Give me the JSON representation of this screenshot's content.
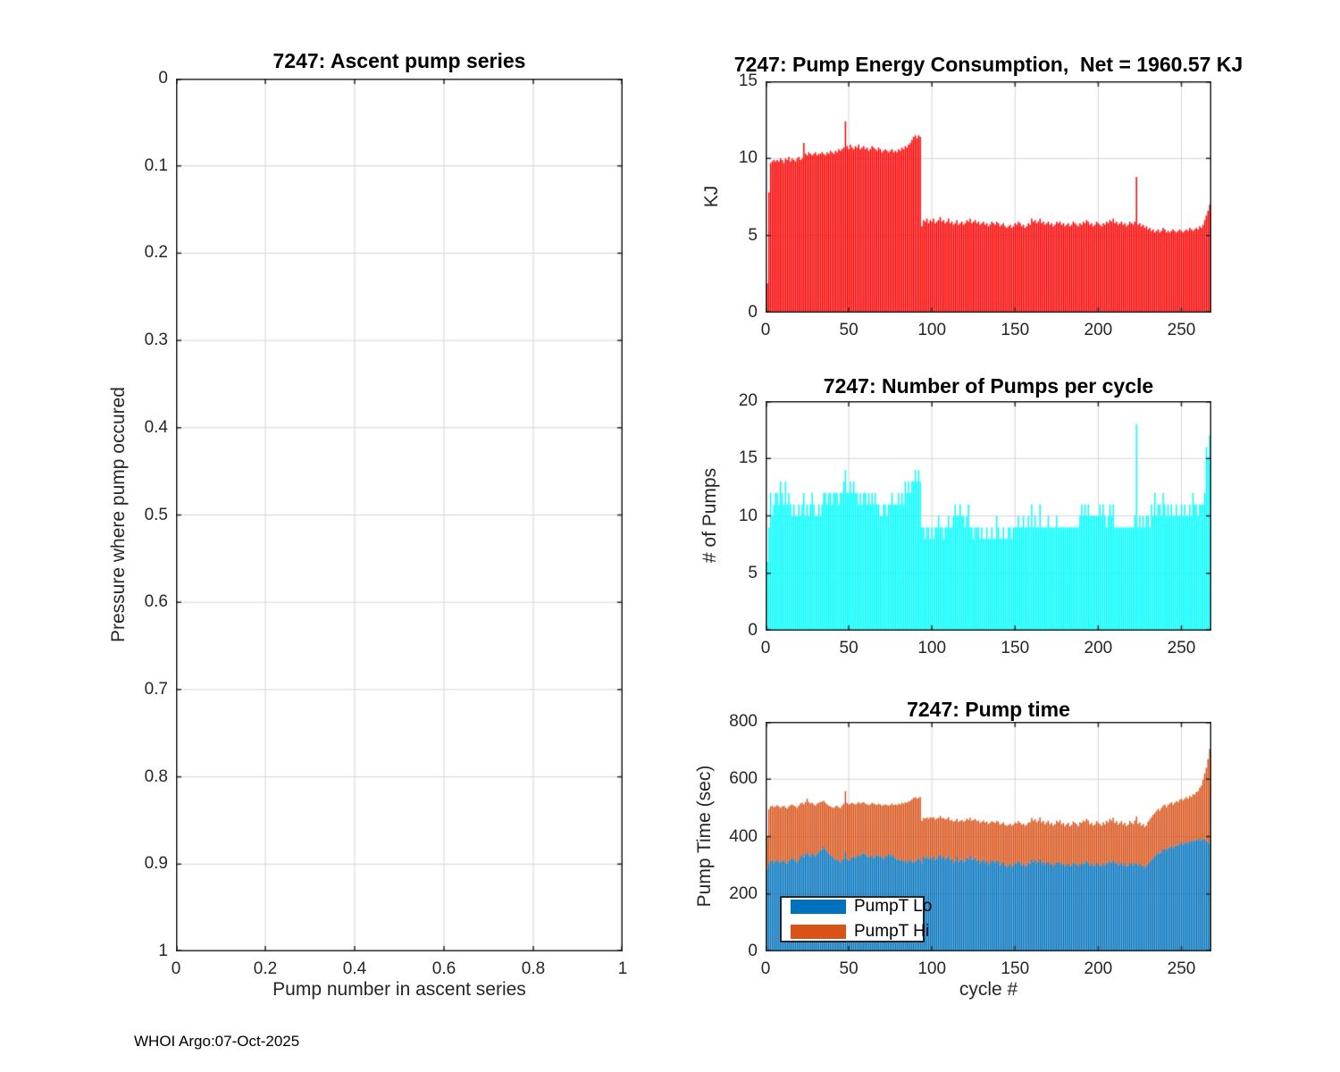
{
  "figure": {
    "footer": "WHOI Argo:07-Oct-2025"
  },
  "colors": {
    "background": "#ffffff",
    "axis": "#262626",
    "grid": "#d6d6d6",
    "energy_bar": "#ff0000",
    "pumps_bar": "#00ffff",
    "pump_lo": "#0072bd",
    "pump_hi": "#d95319"
  },
  "chart_data": [
    {
      "id": "ascent",
      "type": "bar",
      "title": "7247: Ascent pump series",
      "xlabel": "Pump number in ascent series",
      "ylabel": "Pressure where pump occured",
      "xlim": [
        0,
        1
      ],
      "ylim": [
        0,
        1
      ],
      "y_reversed": true,
      "grid": true,
      "xticks": [
        0,
        0.2,
        0.4,
        0.6,
        0.8,
        1
      ],
      "xtick_labels": [
        "0",
        "0.2",
        "0.4",
        "0.6",
        "0.8",
        "1"
      ],
      "yticks": [
        0,
        0.1,
        0.2,
        0.3,
        0.4,
        0.5,
        0.6,
        0.7,
        0.8,
        0.9,
        1
      ],
      "ytick_labels": [
        "0",
        "0.1",
        "0.2",
        "0.3",
        "0.4",
        "0.5",
        "0.6",
        "0.7",
        "0.8",
        "0.9",
        "1"
      ],
      "values": []
    },
    {
      "id": "energy",
      "type": "bar",
      "title": "7247: Pump Energy Consumption,  Net = 1960.57 KJ",
      "xlabel": "",
      "ylabel": "KJ",
      "net_kj": 1960.57,
      "xlim": [
        0,
        268
      ],
      "ylim": [
        0,
        15
      ],
      "grid": true,
      "xticks": [
        0,
        50,
        100,
        150,
        200,
        250
      ],
      "xtick_labels": [
        "0",
        "50",
        "100",
        "150",
        "200",
        "250"
      ],
      "yticks": [
        0,
        5,
        10,
        15
      ],
      "ytick_labels": [
        "0",
        "5",
        "10",
        "15"
      ],
      "bar_color": "#ff0000",
      "values": [
        1.9,
        7.8,
        9.7,
        9.8,
        9.9,
        9.8,
        9.9,
        9.8,
        10.0,
        9.9,
        9.7,
        10.0,
        9.9,
        10.1,
        9.8,
        10.0,
        9.9,
        9.8,
        10.0,
        10.1,
        9.9,
        10.0,
        11.0,
        10.3,
        10.2,
        10.4,
        10.3,
        10.2,
        10.3,
        10.4,
        10.2,
        10.3,
        10.3,
        10.4,
        10.3,
        10.2,
        10.4,
        10.3,
        10.5,
        10.4,
        10.3,
        10.5,
        10.4,
        10.6,
        10.5,
        10.6,
        10.7,
        12.4,
        10.8,
        10.6,
        10.9,
        10.7,
        10.6,
        10.8,
        10.7,
        10.9,
        10.6,
        10.7,
        10.8,
        10.6,
        10.7,
        10.5,
        10.6,
        10.8,
        10.7,
        10.6,
        10.5,
        10.7,
        10.6,
        10.4,
        10.5,
        10.6,
        10.5,
        10.4,
        10.5,
        10.6,
        10.4,
        10.5,
        10.4,
        10.6,
        10.5,
        10.7,
        10.6,
        10.8,
        10.7,
        10.9,
        11.0,
        11.2,
        11.4,
        11.5,
        11.3,
        11.5,
        11.4,
        5.6,
        6.0,
        5.9,
        6.1,
        5.8,
        6.0,
        5.9,
        6.1,
        5.8,
        5.9,
        6.0,
        6.2,
        5.9,
        6.0,
        5.8,
        5.9,
        6.1,
        5.8,
        5.9,
        5.7,
        5.8,
        6.0,
        5.7,
        5.8,
        5.9,
        5.7,
        5.8,
        6.0,
        5.9,
        6.1,
        5.8,
        5.9,
        6.0,
        5.8,
        5.9,
        5.7,
        5.8,
        5.9,
        5.7,
        5.8,
        5.6,
        5.7,
        5.9,
        5.8,
        5.7,
        5.9,
        5.8,
        5.6,
        5.7,
        5.8,
        5.6,
        5.5,
        5.6,
        5.7,
        5.5,
        5.6,
        5.8,
        5.7,
        5.9,
        5.8,
        5.6,
        5.7,
        5.5,
        5.6,
        5.8,
        5.7,
        6.1,
        5.9,
        6.0,
        5.8,
        5.9,
        6.1,
        5.8,
        5.9,
        5.7,
        5.8,
        5.9,
        5.7,
        5.8,
        5.6,
        5.7,
        5.9,
        5.8,
        5.9,
        5.7,
        5.8,
        5.6,
        5.7,
        5.8,
        5.6,
        5.7,
        5.9,
        5.8,
        5.7,
        5.6,
        5.8,
        5.7,
        5.9,
        5.8,
        6.0,
        5.9,
        5.7,
        5.8,
        5.6,
        5.7,
        5.9,
        5.8,
        5.7,
        5.6,
        5.8,
        5.7,
        5.9,
        5.8,
        6.0,
        5.9,
        6.1,
        5.8,
        5.9,
        5.7,
        5.8,
        5.9,
        5.7,
        5.8,
        5.6,
        5.7,
        5.9,
        5.8,
        5.7,
        5.9,
        8.8,
        5.7,
        5.8,
        5.6,
        5.7,
        5.5,
        5.6,
        5.4,
        5.5,
        5.3,
        5.4,
        5.2,
        5.3,
        5.4,
        5.2,
        5.3,
        5.5,
        5.4,
        5.2,
        5.3,
        5.2,
        5.3,
        5.4,
        5.3,
        5.2,
        5.3,
        5.4,
        5.3,
        5.2,
        5.3,
        5.4,
        5.3,
        5.5,
        5.4,
        5.3,
        5.4,
        5.5,
        5.4,
        5.6,
        5.5,
        5.7,
        6.0,
        6.3,
        6.6,
        7.0,
        7.7
      ]
    },
    {
      "id": "pumps",
      "type": "bar",
      "title": "7247: Number of Pumps per cycle",
      "xlabel": "",
      "ylabel": "# of Pumps",
      "xlim": [
        0,
        268
      ],
      "ylim": [
        0,
        20
      ],
      "grid": true,
      "xticks": [
        0,
        50,
        100,
        150,
        200,
        250
      ],
      "xtick_labels": [
        "0",
        "50",
        "100",
        "150",
        "200",
        "250"
      ],
      "yticks": [
        0,
        5,
        10,
        15,
        20
      ],
      "ytick_labels": [
        "0",
        "5",
        "10",
        "15",
        "20"
      ],
      "bar_color": "#00ffff",
      "values": [
        6,
        9,
        12,
        10,
        11,
        12,
        12,
        11,
        13,
        12,
        11,
        13,
        11,
        12,
        11,
        10,
        11,
        10,
        10,
        11,
        10,
        11,
        12,
        10,
        11,
        10,
        11,
        12,
        11,
        10,
        10,
        11,
        10,
        11,
        12,
        12,
        11,
        12,
        12,
        11,
        12,
        12,
        12,
        11,
        12,
        12,
        13,
        14,
        12,
        12,
        13,
        12,
        13,
        12,
        12,
        11,
        12,
        11,
        12,
        12,
        11,
        12,
        11,
        12,
        11,
        12,
        11,
        11,
        10,
        10,
        11,
        11,
        10,
        11,
        11,
        12,
        11,
        11,
        11,
        12,
        11,
        12,
        11,
        13,
        12,
        13,
        12,
        13,
        13,
        14,
        13,
        14,
        13,
        9,
        9,
        8,
        9,
        9,
        8,
        9,
        8,
        9,
        9,
        10,
        9,
        9,
        8,
        9,
        9,
        10,
        9,
        9,
        10,
        11,
        10,
        10,
        11,
        10,
        10,
        9,
        10,
        11,
        9,
        9,
        8,
        9,
        9,
        9,
        8,
        9,
        8,
        8,
        9,
        8,
        8,
        9,
        8,
        8,
        10,
        9,
        8,
        8,
        9,
        8,
        8,
        9,
        9,
        8,
        9,
        9,
        9,
        10,
        9,
        9,
        10,
        9,
        9,
        10,
        9,
        11,
        9,
        10,
        9,
        9,
        11,
        9,
        9,
        9,
        9,
        10,
        9,
        9,
        9,
        9,
        10,
        9,
        9,
        9,
        9,
        9,
        9,
        9,
        9,
        9,
        9,
        9,
        9,
        9,
        10,
        11,
        10,
        11,
        10,
        11,
        10,
        10,
        10,
        10,
        10,
        10,
        11,
        10,
        11,
        10,
        9,
        10,
        11,
        10,
        11,
        9,
        9,
        9,
        9,
        9,
        9,
        9,
        9,
        9,
        9,
        9,
        9,
        10,
        18,
        9,
        10,
        9,
        10,
        9,
        10,
        10,
        9,
        11,
        10,
        12,
        10,
        11,
        11,
        10,
        12,
        11,
        10,
        11,
        10,
        11,
        10,
        10,
        11,
        10,
        10,
        11,
        10,
        11,
        10,
        10,
        11,
        10,
        12,
        11,
        11,
        10,
        11,
        11,
        11,
        12,
        16,
        15,
        17,
        18
      ]
    },
    {
      "id": "time",
      "type": "stacked-bar",
      "title": "7247: Pump time",
      "xlabel": "cycle #",
      "ylabel": "Pump Time (sec)",
      "xlim": [
        0,
        268
      ],
      "ylim": [
        0,
        800
      ],
      "grid": true,
      "xticks": [
        0,
        50,
        100,
        150,
        200,
        250
      ],
      "xtick_labels": [
        "0",
        "50",
        "100",
        "150",
        "200",
        "250"
      ],
      "yticks": [
        0,
        200,
        400,
        600,
        800
      ],
      "ytick_labels": [
        "0",
        "200",
        "400",
        "600",
        "800"
      ],
      "legend_position": "southwest",
      "series": [
        {
          "name": "PumpT Lo",
          "color": "#0072bd",
          "values": [
            286,
            305,
            315,
            318,
            310,
            316,
            320,
            312,
            308,
            315,
            318,
            310,
            306,
            316,
            322,
            326,
            320,
            314,
            310,
            318,
            330,
            336,
            328,
            340,
            345,
            338,
            332,
            342,
            336,
            330,
            340,
            346,
            352,
            356,
            364,
            356,
            348,
            340,
            334,
            330,
            326,
            318,
            322,
            315,
            310,
            318,
            325,
            348,
            322,
            316,
            320,
            328,
            332,
            325,
            330,
            338,
            332,
            340,
            344,
            338,
            332,
            328,
            335,
            330,
            325,
            332,
            338,
            330,
            335,
            328,
            322,
            330,
            335,
            340,
            332,
            338,
            330,
            325,
            318,
            322,
            315,
            320,
            312,
            318,
            310,
            315,
            320,
            312,
            308,
            315,
            320,
            325,
            318,
            305,
            330,
            325,
            332,
            322,
            328,
            320,
            332,
            318,
            325,
            330,
            338,
            326,
            330,
            320,
            325,
            332,
            318,
            322,
            310,
            315,
            330,
            312,
            318,
            322,
            312,
            316,
            328,
            322,
            334,
            318,
            322,
            328,
            316,
            320,
            308,
            314,
            320,
            310,
            315,
            302,
            308,
            318,
            314,
            310,
            318,
            314,
            300,
            305,
            312,
            300,
            295,
            300,
            306,
            295,
            300,
            310,
            305,
            315,
            310,
            300,
            306,
            296,
            300,
            310,
            306,
            322,
            312,
            318,
            308,
            312,
            322,
            308,
            312,
            302,
            308,
            312,
            302,
            306,
            296,
            302,
            312,
            308,
            312,
            302,
            306,
            296,
            302,
            306,
            296,
            300,
            310,
            306,
            302,
            296,
            306,
            302,
            310,
            306,
            315,
            310,
            300,
            305,
            296,
            300,
            310,
            305,
            300,
            296,
            305,
            300,
            310,
            305,
            315,
            310,
            318,
            305,
            310,
            300,
            305,
            310,
            300,
            305,
            296,
            300,
            310,
            305,
            300,
            310,
            305,
            300,
            305,
            296,
            300,
            292,
            296,
            306,
            312,
            318,
            325,
            330,
            338,
            345,
            340,
            348,
            355,
            360,
            352,
            358,
            362,
            368,
            360,
            365,
            372,
            368,
            375,
            380,
            372,
            378,
            382,
            376,
            385,
            380,
            388,
            384,
            390,
            386,
            392,
            388,
            394,
            390,
            385,
            380,
            375,
            355
          ]
        },
        {
          "name": "PumpT Hi",
          "color": "#d95319",
          "values": [
            112,
            190,
            190,
            190,
            192,
            189,
            190,
            193,
            192,
            190,
            190,
            192,
            192,
            189,
            188,
            186,
            188,
            191,
            190,
            190,
            185,
            182,
            184,
            180,
            187,
            182,
            183,
            176,
            176,
            178,
            175,
            172,
            168,
            166,
            161,
            162,
            164,
            168,
            171,
            172,
            174,
            187,
            186,
            187,
            190,
            190,
            190,
            210,
            196,
            196,
            195,
            190,
            183,
            187,
            185,
            182,
            183,
            178,
            176,
            177,
            180,
            182,
            177,
            188,
            190,
            180,
            172,
            185,
            177,
            180,
            188,
            182,
            175,
            168,
            178,
            177,
            180,
            187,
            192,
            193,
            197,
            198,
            203,
            202,
            208,
            207,
            205,
            218,
            227,
            223,
            212,
            210,
            220,
            150,
            135,
            138,
            135,
            140,
            140,
            145,
            136,
            142,
            138,
            135,
            134,
            138,
            135,
            140,
            137,
            136,
            138,
            136,
            142,
            140,
            132,
            140,
            137,
            136,
            140,
            139,
            135,
            136,
            132,
            137,
            136,
            134,
            138,
            136,
            140,
            138,
            136,
            139,
            137,
            142,
            140,
            136,
            137,
            138,
            137,
            137,
            142,
            140,
            138,
            141,
            143,
            141,
            139,
            143,
            142,
            139,
            141,
            139,
            139,
            142,
            139,
            142,
            141,
            139,
            144,
            143,
            143,
            143,
            142,
            143,
            145,
            142,
            143,
            141,
            142,
            143,
            141,
            142,
            142,
            141,
            143,
            142,
            145,
            141,
            142,
            140,
            141,
            142,
            140,
            141,
            143,
            142,
            141,
            140,
            144,
            146,
            146,
            147,
            147,
            146,
            143,
            143,
            142,
            142,
            144,
            143,
            144,
            142,
            145,
            143,
            145,
            144,
            147,
            146,
            148,
            143,
            144,
            142,
            143,
            144,
            142,
            143,
            141,
            142,
            145,
            143,
            143,
            146,
            165,
            144,
            145,
            142,
            144,
            142,
            143,
            146,
            148,
            150,
            151,
            152,
            152,
            152,
            150,
            152,
            153,
            152,
            150,
            152,
            153,
            152,
            152,
            153,
            152,
            152,
            153,
            152,
            154,
            154,
            156,
            156,
            157,
            158,
            160,
            162,
            165,
            172,
            178,
            190,
            205,
            230,
            255,
            290,
            330,
            415
          ]
        }
      ]
    }
  ]
}
